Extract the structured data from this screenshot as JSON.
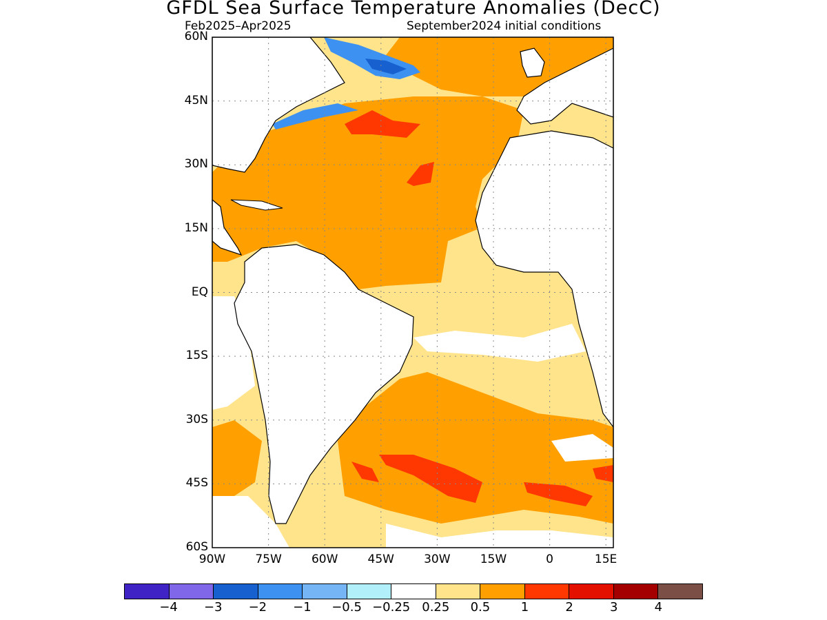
{
  "title": "GFDL Sea Surface Temperature Anomalies (DecC)",
  "subtitle_left": "Feb2025–Apr2025",
  "subtitle_right": "September2024 initial conditions",
  "map": {
    "lat_labels": [
      "60N",
      "45N",
      "30N",
      "15N",
      "EQ",
      "15S",
      "30S",
      "45S",
      "60S"
    ],
    "lon_labels": [
      "90W",
      "75W",
      "60W",
      "45W",
      "30W",
      "15W",
      "0",
      "15E"
    ],
    "lat_values": [
      60,
      45,
      30,
      15,
      0,
      -15,
      -30,
      -45,
      -60
    ],
    "lon_values": [
      -90,
      -75,
      -60,
      -45,
      -30,
      -15,
      0,
      15
    ],
    "lon_range": [
      -90,
      17
    ],
    "lat_range": [
      -60,
      60
    ],
    "grid": "dotted"
  },
  "colorbar": {
    "colors": [
      "#3f23c4",
      "#8066e8",
      "#1660d0",
      "#3d91f0",
      "#75b5f6",
      "#b1f0fa",
      "#ffffff",
      "#ffe48c",
      "#ffa000",
      "#ff3700",
      "#e31000",
      "#a50000",
      "#7b4f45"
    ],
    "labels": [
      "−4",
      "−3",
      "−2",
      "−1",
      "−0.5",
      "−0.25",
      "0.25",
      "0.5",
      "1",
      "2",
      "3",
      "4"
    ]
  }
}
